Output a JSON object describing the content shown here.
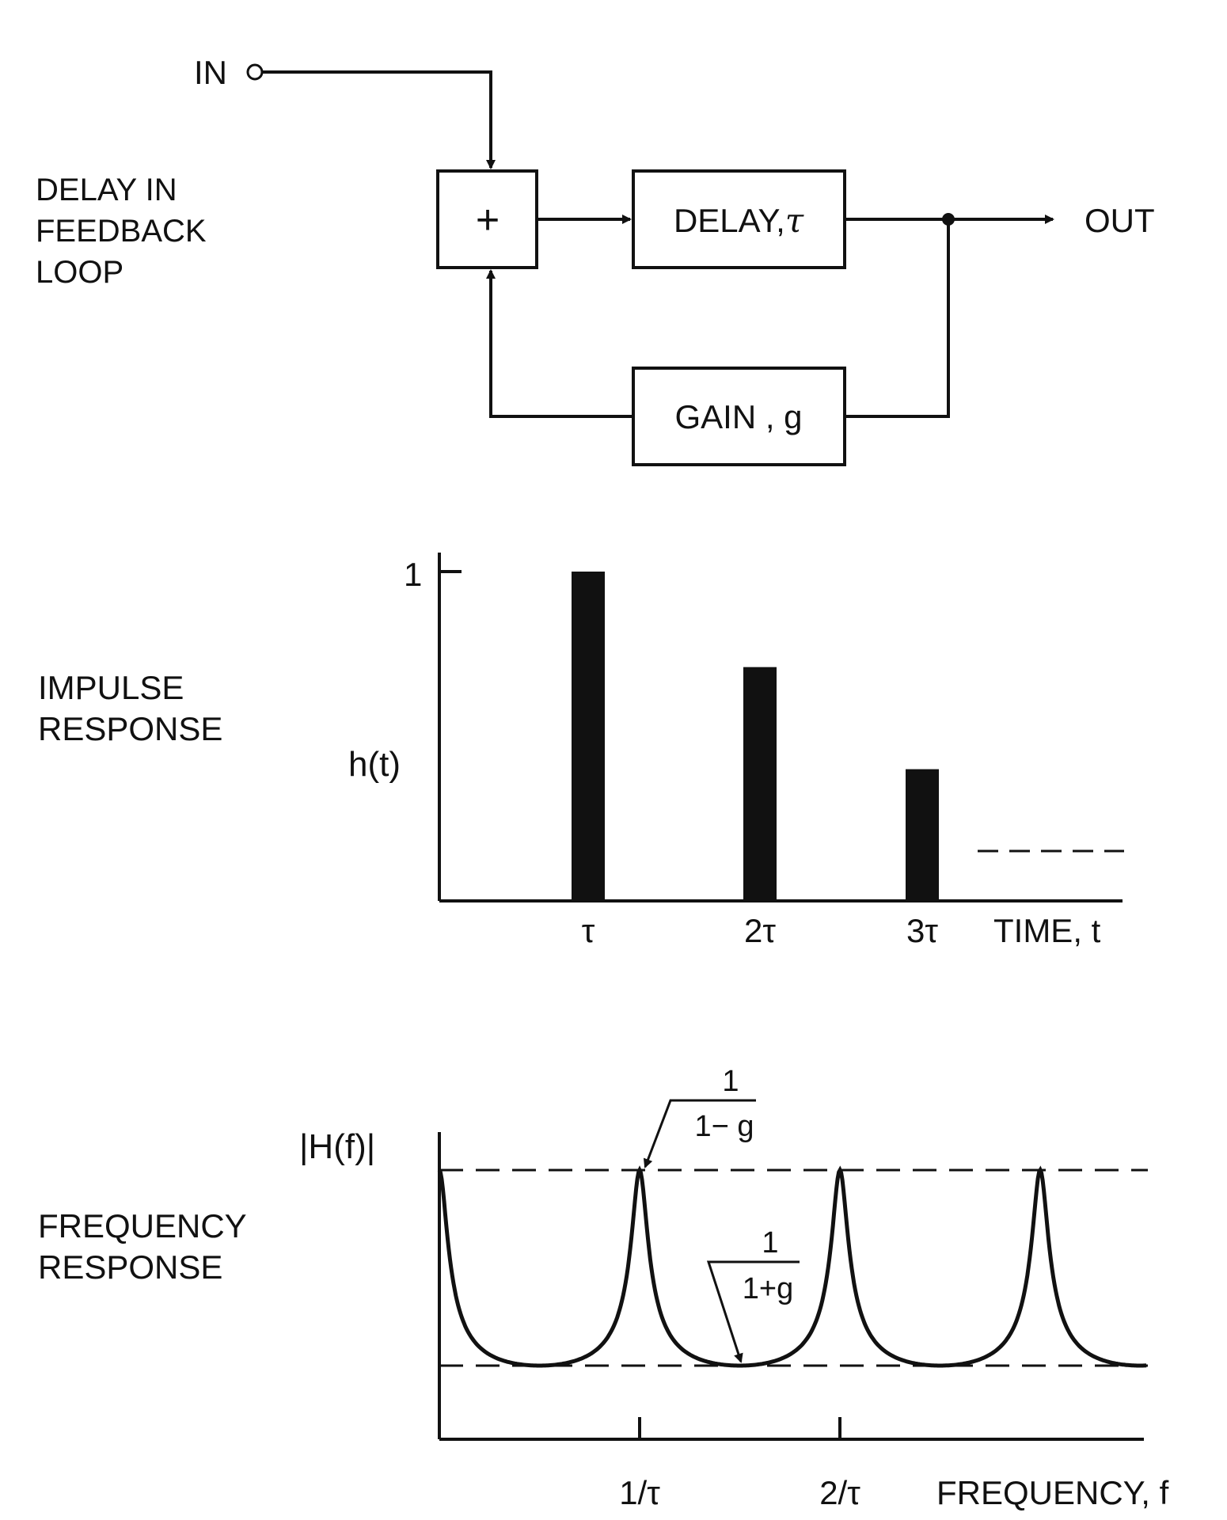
{
  "block_diagram": {
    "section_label": [
      "DELAY IN",
      "FEEDBACK",
      "LOOP"
    ],
    "input_label": "IN",
    "output_label": "OUT",
    "summer_symbol": "+",
    "delay_label": "DELAY,",
    "delay_symbol": "τ",
    "gain_label": "GAIN , g"
  },
  "impulse_response": {
    "section_label": [
      "IMPULSE",
      "RESPONSE"
    ],
    "y_label": "h(t)",
    "y_tick_label": "1",
    "x_label": "TIME, t",
    "x_tick_labels": [
      "τ",
      "2τ",
      "3τ"
    ]
  },
  "frequency_response": {
    "section_label": [
      "FREQUENCY",
      "RESPONSE"
    ],
    "y_label": "|H(f)|",
    "x_label": "FREQUENCY, f",
    "x_tick_labels": [
      "1/τ",
      "2/τ"
    ],
    "max_annotation": {
      "numerator": "1",
      "denominator": "1− g"
    },
    "min_annotation": {
      "numerator": "1",
      "denominator": "1+g"
    }
  },
  "chart_data": [
    {
      "type": "bar",
      "categories": [
        "τ",
        "2τ",
        "3τ"
      ],
      "values": [
        1.0,
        0.71,
        0.4
      ],
      "xlabel": "TIME, t",
      "ylabel": "h(t)",
      "ylim": [
        0,
        1.05
      ],
      "continues": true
    },
    {
      "type": "line",
      "x": [
        0,
        0.5,
        1,
        1.5,
        2,
        2.5,
        3,
        3.5
      ],
      "y": [
        1,
        0,
        1,
        0,
        1,
        0,
        1,
        0
      ],
      "x_unit": "1/τ",
      "y_meaning": "1 = 1/(1−g) maximum, 0 = 1/(1+g) minimum",
      "xlabel": "FREQUENCY, f",
      "ylabel": "|H(f)|"
    }
  ]
}
